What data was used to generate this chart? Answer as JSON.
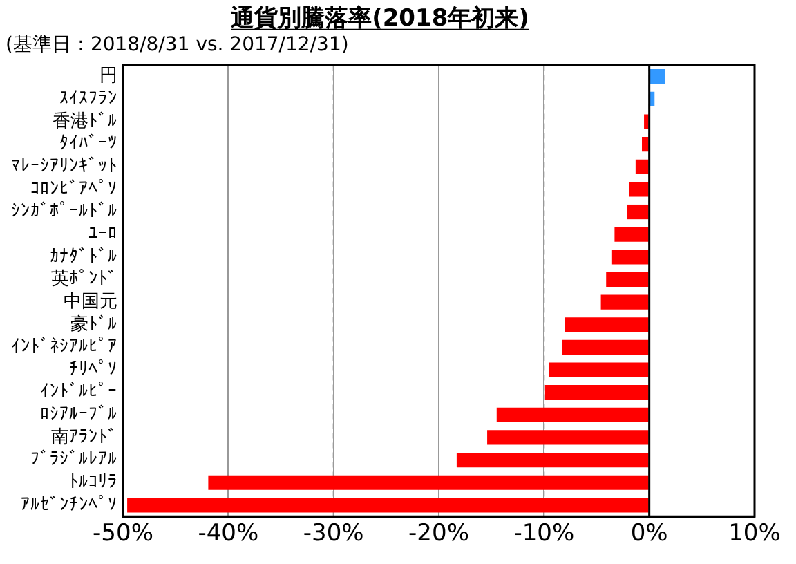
{
  "chart_data": {
    "type": "bar",
    "orientation": "horizontal",
    "title": "通貨別騰落率(2018年初来)",
    "subtitle": "(基準日：2018/8/31 vs. 2017/12/31)",
    "categories": [
      "円",
      "ｽｲｽﾌﾗﾝ",
      "香港ﾄﾞﾙ",
      "ﾀｲﾊﾞｰﾂ",
      "ﾏﾚｰｼｱﾘﾝｷﾞｯﾄ",
      "ｺﾛﾝﾋﾞｱﾍﾟｿ",
      "ｼﾝｶﾞﾎﾟｰﾙﾄﾞﾙ",
      "ﾕｰﾛ",
      "ｶﾅﾀﾞﾄﾞﾙ",
      "英ﾎﾟﾝﾄﾞ",
      "中国元",
      "豪ﾄﾞﾙ",
      "ｲﾝﾄﾞﾈｼｱﾙﾋﾟｱ",
      "ﾁﾘﾍﾟｿ",
      "ｲﾝﾄﾞﾙﾋﾟｰ",
      "ﾛｼｱﾙｰﾌﾞﾙ",
      "南ｱﾗﾝﾄﾞ",
      "ﾌﾞﾗｼﾞﾙﾚｱﾙ",
      "ﾄﾙｺﾘﾗ",
      "ｱﾙｾﾞﾝﾁﾝﾍﾟｿ"
    ],
    "values": [
      1.5,
      0.5,
      -0.5,
      -0.7,
      -1.3,
      -1.9,
      -2.1,
      -3.3,
      -3.6,
      -4.1,
      -4.6,
      -8.0,
      -8.3,
      -9.5,
      -9.9,
      -14.5,
      -15.4,
      -18.3,
      -41.9,
      -49.6
    ],
    "colors": [
      "#3399ff",
      "#3399ff",
      "#ff0000",
      "#ff0000",
      "#ff0000",
      "#ff0000",
      "#ff0000",
      "#ff0000",
      "#ff0000",
      "#ff0000",
      "#ff0000",
      "#ff0000",
      "#ff0000",
      "#ff0000",
      "#ff0000",
      "#ff0000",
      "#ff0000",
      "#ff0000",
      "#ff0000",
      "#ff0000"
    ],
    "xlim": [
      -50,
      10
    ],
    "xticks": [
      {
        "value": -50,
        "label": "-50%"
      },
      {
        "value": -40,
        "label": "-40%"
      },
      {
        "value": -30,
        "label": "-30%"
      },
      {
        "value": -20,
        "label": "-20%"
      },
      {
        "value": -10,
        "label": "-10%"
      },
      {
        "value": 0,
        "label": "0%"
      },
      {
        "value": 10,
        "label": "10%"
      }
    ],
    "grid": "x",
    "legend": false
  }
}
